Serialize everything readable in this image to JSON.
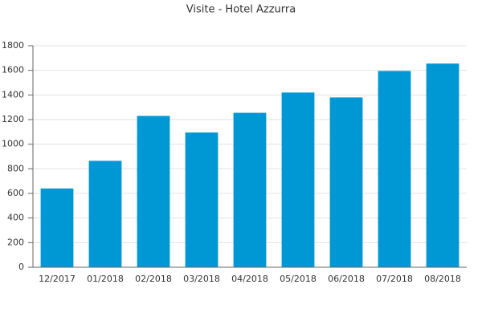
{
  "chart_data": {
    "type": "bar",
    "title": "Visite - Hotel Azzurra",
    "categories": [
      "12/2017",
      "01/2018",
      "02/2018",
      "03/2018",
      "04/2018",
      "05/2018",
      "06/2018",
      "07/2018",
      "08/2018"
    ],
    "values": [
      640,
      865,
      1230,
      1095,
      1255,
      1420,
      1380,
      1595,
      1655
    ],
    "color": "#0098d4",
    "ylim": [
      0,
      1800
    ],
    "yticks": [
      0,
      200,
      400,
      600,
      800,
      1000,
      1200,
      1400,
      1600,
      1800
    ],
    "grid": true
  }
}
